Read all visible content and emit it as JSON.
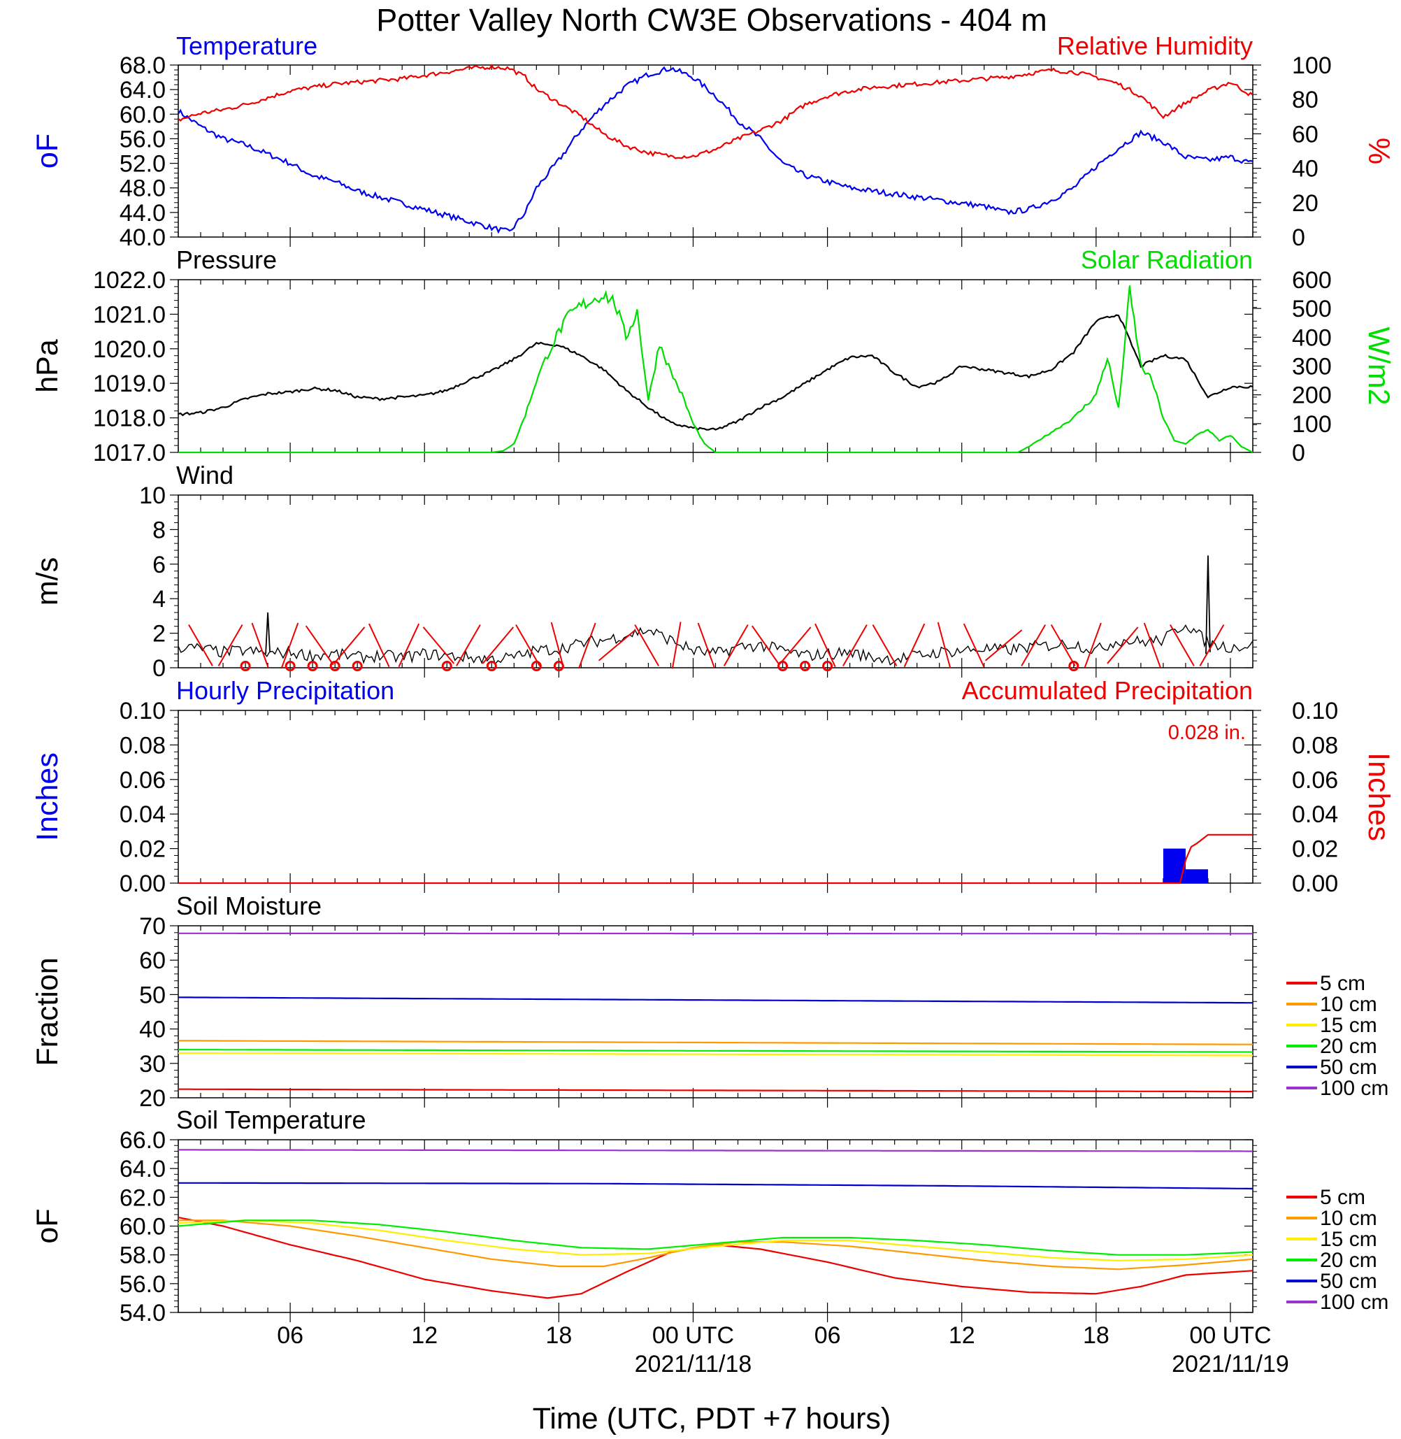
{
  "title": "Potter Valley North CW3E Observations - 404 m",
  "colors": {
    "blue": "#0000ee",
    "red": "#ee0000",
    "green": "#00dd00",
    "black": "#000000",
    "orange": "#ff9900",
    "yellow": "#ffee00",
    "soil_green": "#00ee00",
    "navy": "#0000cc",
    "purple": "#9933cc"
  },
  "x_axis": {
    "label": "Time (UTC, PDT +7 hours)",
    "range_hours": [
      1,
      49
    ],
    "ticks": [
      {
        "h": 6,
        "label": "06",
        "sub": ""
      },
      {
        "h": 12,
        "label": "12",
        "sub": ""
      },
      {
        "h": 18,
        "label": "18",
        "sub": ""
      },
      {
        "h": 24,
        "label": "00 UTC",
        "sub": "2021/11/18"
      },
      {
        "h": 30,
        "label": "06",
        "sub": ""
      },
      {
        "h": 36,
        "label": "12",
        "sub": ""
      },
      {
        "h": 42,
        "label": "18",
        "sub": ""
      },
      {
        "h": 48,
        "label": "00 UTC",
        "sub": "2021/11/19"
      }
    ]
  },
  "chart_data": [
    {
      "type": "line",
      "panel": "temperature_humidity",
      "left_title": "Temperature",
      "right_title": "Relative Humidity",
      "ylabel_left": "oF",
      "ylabel_right": "%",
      "ylim_left": [
        40,
        68
      ],
      "yticks_left": [
        "40.0",
        "44.0",
        "48.0",
        "52.0",
        "56.0",
        "60.0",
        "64.0",
        "68.0"
      ],
      "ylim_right": [
        0,
        100
      ],
      "yticks_right": [
        "0",
        "20",
        "40",
        "60",
        "80",
        "100"
      ],
      "series": [
        {
          "name": "Temperature",
          "axis": "left",
          "color": "#0000ee",
          "x": [
            1,
            2,
            3,
            4,
            5,
            6,
            7,
            8,
            9,
            10,
            11,
            12,
            13,
            14,
            15,
            15.8,
            16.5,
            17,
            18,
            19,
            20,
            21,
            22,
            23,
            24,
            25,
            26,
            27,
            28,
            29,
            30,
            31,
            32,
            33,
            34,
            35,
            36,
            37,
            38,
            39,
            40,
            41,
            42,
            43,
            44,
            45,
            46,
            47,
            48,
            49
          ],
          "y": [
            60.5,
            58,
            56,
            55,
            53.5,
            52,
            50,
            49,
            47.5,
            46.5,
            45.5,
            44.5,
            43.5,
            42.5,
            41.5,
            40.8,
            44,
            48,
            52.5,
            57.5,
            61.5,
            64.5,
            66.5,
            67.5,
            66,
            63,
            59,
            56,
            52,
            50,
            49,
            48,
            47.5,
            47,
            46.5,
            46,
            45.5,
            45,
            44,
            44.5,
            46,
            48,
            51.5,
            54.5,
            57,
            55.5,
            53,
            52.5,
            53,
            52
          ]
        },
        {
          "name": "Relative Humidity",
          "axis": "right",
          "color": "#ee0000",
          "x": [
            1,
            2,
            3,
            4,
            5,
            6,
            7,
            8,
            9,
            10,
            11,
            12,
            13,
            14,
            15,
            15.8,
            16.5,
            17,
            18,
            19,
            20,
            21,
            22,
            23,
            24,
            25,
            26,
            27,
            28,
            29,
            30,
            31,
            32,
            33,
            34,
            35,
            36,
            37,
            38,
            39,
            40,
            41,
            42,
            43,
            44,
            45,
            46,
            47,
            48,
            49
          ],
          "y": [
            68,
            72,
            74,
            77,
            81,
            85,
            87,
            89,
            90,
            91,
            92,
            94,
            96,
            98,
            99,
            98,
            93,
            86,
            78,
            70,
            60,
            53,
            49,
            47,
            47,
            51,
            57,
            62,
            68,
            77,
            82,
            85,
            87,
            88,
            89,
            90,
            91,
            92,
            93,
            95,
            97,
            96,
            93,
            89,
            82,
            70,
            78,
            85,
            90,
            82
          ]
        }
      ]
    },
    {
      "type": "line",
      "panel": "pressure_solar",
      "left_title": "Pressure",
      "right_title": "Solar Radiation",
      "ylabel_left": "hPa",
      "ylabel_right": "W/m2",
      "ylim_left": [
        1017,
        1022
      ],
      "yticks_left": [
        "1017.0",
        "1018.0",
        "1019.0",
        "1020.0",
        "1021.0",
        "1022.0"
      ],
      "ylim_right": [
        0,
        600
      ],
      "yticks_right": [
        "0",
        "100",
        "200",
        "300",
        "400",
        "500",
        "600"
      ],
      "series": [
        {
          "name": "Pressure",
          "axis": "left",
          "color": "#000000",
          "x": [
            1,
            2,
            3,
            4,
            5,
            6,
            7,
            8,
            9,
            10,
            11,
            12,
            13,
            14,
            15,
            16,
            17,
            18,
            19,
            20,
            21,
            22,
            23,
            24,
            25,
            26,
            27,
            28,
            29,
            30,
            31,
            32,
            33,
            34,
            35,
            36,
            37,
            38,
            39,
            40,
            41,
            42,
            43,
            44,
            45,
            46,
            47,
            48,
            49
          ],
          "y": [
            1018.1,
            1018.15,
            1018.3,
            1018.55,
            1018.7,
            1018.75,
            1018.85,
            1018.8,
            1018.6,
            1018.55,
            1018.6,
            1018.65,
            1018.8,
            1019.1,
            1019.35,
            1019.7,
            1020.15,
            1020.1,
            1019.8,
            1019.4,
            1018.8,
            1018.3,
            1017.85,
            1017.7,
            1017.65,
            1017.9,
            1018.3,
            1018.6,
            1019.0,
            1019.4,
            1019.75,
            1019.8,
            1019.3,
            1018.9,
            1019.05,
            1019.5,
            1019.4,
            1019.3,
            1019.2,
            1019.4,
            1019.9,
            1020.8,
            1021.0,
            1019.5,
            1019.8,
            1019.7,
            1018.6,
            1018.9,
            1018.9
          ]
        },
        {
          "name": "Solar Radiation",
          "axis": "right",
          "color": "#00dd00",
          "x": [
            1,
            15,
            15.5,
            16,
            16.5,
            17,
            17.5,
            18,
            18.5,
            19,
            19.5,
            20,
            20.5,
            21,
            21.5,
            22,
            22.5,
            23,
            23.5,
            24,
            24.5,
            25,
            25.5,
            38.5,
            39,
            40,
            41,
            42,
            42.5,
            43,
            43.5,
            44,
            44.5,
            45,
            45.5,
            46,
            46.5,
            47,
            47.5,
            48,
            48.5,
            49
          ],
          "y": [
            0,
            0,
            5,
            30,
            130,
            250,
            340,
            420,
            480,
            510,
            530,
            550,
            520,
            400,
            490,
            180,
            380,
            280,
            200,
            100,
            30,
            0,
            0,
            0,
            20,
            70,
            120,
            200,
            330,
            150,
            560,
            300,
            250,
            120,
            40,
            30,
            60,
            80,
            40,
            60,
            20,
            0
          ]
        }
      ]
    },
    {
      "type": "line",
      "panel": "wind",
      "left_title": "Wind",
      "ylabel_left": "m/s",
      "ylim_left": [
        0,
        10
      ],
      "yticks_left": [
        "0",
        "2",
        "4",
        "6",
        "8",
        "10"
      ],
      "series": [
        {
          "name": "Wind",
          "axis": "left",
          "color": "#000000",
          "x": [
            1,
            2,
            3,
            4,
            5,
            6,
            7,
            8,
            9,
            10,
            11,
            12,
            13,
            14,
            15,
            16,
            17,
            18,
            19,
            20,
            21,
            22,
            23,
            24,
            25,
            26,
            27,
            28,
            29,
            30,
            31,
            32,
            33,
            34,
            35,
            36,
            37,
            38,
            39,
            40,
            41,
            42,
            43,
            44,
            45,
            46,
            47,
            48,
            49
          ],
          "y": [
            1.2,
            1.1,
            0.9,
            1.0,
            0.8,
            0.9,
            0.7,
            0.8,
            0.6,
            0.7,
            0.6,
            0.8,
            0.7,
            0.6,
            0.5,
            0.6,
            1.0,
            1.1,
            1.4,
            1.6,
            1.9,
            2.2,
            1.6,
            1.0,
            0.8,
            1.2,
            1.3,
            1.0,
            0.7,
            0.8,
            0.9,
            0.6,
            0.5,
            0.7,
            0.9,
            1.0,
            1.1,
            1.0,
            1.2,
            1.3,
            1.4,
            1.0,
            1.6,
            1.5,
            1.6,
            2.6,
            1.4,
            1.2,
            1.3
          ]
        },
        {
          "name": "Wind peaks",
          "axis": "left",
          "color": "#000000",
          "x": [
            5,
            47
          ],
          "y": [
            3.2,
            6.5
          ]
        }
      ],
      "calm_markers_h": [
        4,
        6,
        7,
        8,
        9,
        13,
        15,
        17,
        18,
        28,
        29,
        30,
        41
      ],
      "barb_angles_deg": [
        60,
        300,
        70,
        290,
        55,
        310,
        65,
        295,
        50,
        300,
        310,
        60,
        75,
        290,
        320,
        60,
        280,
        70,
        300,
        55,
        310,
        65,
        300,
        60,
        295,
        75,
        65,
        320,
        300,
        60,
        290,
        310,
        70,
        60,
        300
      ]
    },
    {
      "type": "bar",
      "panel": "precipitation",
      "left_title": "Hourly Precipitation",
      "right_title": "Accumulated Precipitation",
      "accum_label": "0.028 in.",
      "ylabel_left": "Inches",
      "ylabel_right": "Inches",
      "ylim_left": [
        0,
        0.1
      ],
      "yticks_left": [
        "0.00",
        "0.02",
        "0.04",
        "0.06",
        "0.08",
        "0.10"
      ],
      "ylim_right": [
        0,
        0.1
      ],
      "yticks_right": [
        "0.00",
        "0.02",
        "0.04",
        "0.06",
        "0.08",
        "0.10"
      ],
      "bars": [
        {
          "x0": 45,
          "x1": 46,
          "value": 0.02
        },
        {
          "x0": 46,
          "x1": 47,
          "value": 0.008
        }
      ],
      "series": [
        {
          "name": "Accumulated Precipitation",
          "axis": "right",
          "color": "#ee0000",
          "x": [
            1,
            45.8,
            46.1,
            46.4,
            46.7,
            47.0,
            49
          ],
          "y": [
            0,
            0,
            0.02,
            0.022,
            0.025,
            0.028,
            0.028
          ]
        }
      ]
    },
    {
      "type": "line",
      "panel": "soil_moisture",
      "left_title": "Soil Moisture",
      "ylabel_left": "Fraction",
      "ylim_left": [
        20,
        70
      ],
      "yticks_left": [
        "20",
        "30",
        "40",
        "50",
        "60",
        "70"
      ],
      "legend": [
        "5 cm",
        "10 cm",
        "15 cm",
        "20 cm",
        "50 cm",
        "100 cm"
      ],
      "legend_colors": [
        "#ee0000",
        "#ff9900",
        "#ffee00",
        "#00ee00",
        "#0000cc",
        "#9933cc"
      ],
      "series": [
        {
          "name": "5 cm",
          "color": "#ee0000",
          "x": [
            1,
            49
          ],
          "y": [
            22.5,
            21.8
          ]
        },
        {
          "name": "10 cm",
          "color": "#ff9900",
          "x": [
            1,
            49
          ],
          "y": [
            36.6,
            35.5
          ]
        },
        {
          "name": "15 cm",
          "color": "#ffee00",
          "x": [
            1,
            49
          ],
          "y": [
            33.0,
            32.3
          ]
        },
        {
          "name": "20 cm",
          "color": "#00ee00",
          "x": [
            1,
            49
          ],
          "y": [
            34.0,
            33.3
          ]
        },
        {
          "name": "50 cm",
          "color": "#0000cc",
          "x": [
            1,
            49
          ],
          "y": [
            49.2,
            47.6
          ]
        },
        {
          "name": "100 cm",
          "color": "#9933cc",
          "x": [
            1,
            49
          ],
          "y": [
            67.8,
            67.7
          ]
        }
      ]
    },
    {
      "type": "line",
      "panel": "soil_temperature",
      "left_title": "Soil Temperature",
      "ylabel_left": "oF",
      "ylim_left": [
        54,
        66
      ],
      "yticks_left": [
        "54.0",
        "56.0",
        "58.0",
        "60.0",
        "62.0",
        "64.0",
        "66.0"
      ],
      "legend": [
        "5 cm",
        "10 cm",
        "15 cm",
        "20 cm",
        "50 cm",
        "100 cm"
      ],
      "legend_colors": [
        "#ee0000",
        "#ff9900",
        "#ffee00",
        "#00ee00",
        "#0000cc",
        "#9933cc"
      ],
      "series": [
        {
          "name": "5 cm",
          "color": "#ee0000",
          "x": [
            1,
            3,
            6,
            9,
            12,
            15,
            17.5,
            19,
            21,
            23,
            25,
            27,
            30,
            33,
            36,
            39,
            42,
            44,
            46,
            49
          ],
          "y": [
            60.6,
            60.0,
            58.7,
            57.6,
            56.3,
            55.5,
            55.0,
            55.3,
            56.8,
            58.2,
            58.7,
            58.4,
            57.5,
            56.4,
            55.8,
            55.4,
            55.3,
            55.8,
            56.6,
            56.9
          ]
        },
        {
          "name": "10 cm",
          "color": "#ff9900",
          "x": [
            1,
            3,
            6,
            9,
            12,
            15,
            18,
            20,
            22,
            24,
            26,
            28,
            31,
            34,
            37,
            40,
            43,
            46,
            49
          ],
          "y": [
            60.4,
            60.4,
            60.0,
            59.3,
            58.5,
            57.7,
            57.2,
            57.2,
            57.8,
            58.5,
            58.9,
            58.9,
            58.6,
            58.1,
            57.6,
            57.2,
            57.0,
            57.3,
            57.7
          ]
        },
        {
          "name": "15 cm",
          "color": "#ffee00",
          "x": [
            1,
            4,
            7,
            10,
            13,
            16,
            19,
            22,
            25,
            28,
            31,
            34,
            37,
            40,
            43,
            46,
            49
          ],
          "y": [
            60.2,
            60.4,
            60.2,
            59.7,
            59.0,
            58.4,
            58.0,
            58.1,
            58.6,
            59.0,
            59.0,
            58.6,
            58.2,
            57.8,
            57.6,
            57.7,
            58.0
          ]
        },
        {
          "name": "20 cm",
          "color": "#00ee00",
          "x": [
            1,
            4,
            7,
            10,
            13,
            16,
            19,
            22,
            25,
            28,
            31,
            34,
            37,
            40,
            43,
            46,
            49
          ],
          "y": [
            60.0,
            60.4,
            60.4,
            60.1,
            59.6,
            59.0,
            58.5,
            58.4,
            58.8,
            59.2,
            59.2,
            59.0,
            58.7,
            58.3,
            58.0,
            58.0,
            58.2
          ]
        },
        {
          "name": "50 cm",
          "color": "#0000cc",
          "x": [
            1,
            20,
            35,
            49
          ],
          "y": [
            63.0,
            62.95,
            62.8,
            62.6
          ]
        },
        {
          "name": "100 cm",
          "color": "#9933cc",
          "x": [
            1,
            49
          ],
          "y": [
            65.3,
            65.2
          ]
        }
      ]
    }
  ]
}
